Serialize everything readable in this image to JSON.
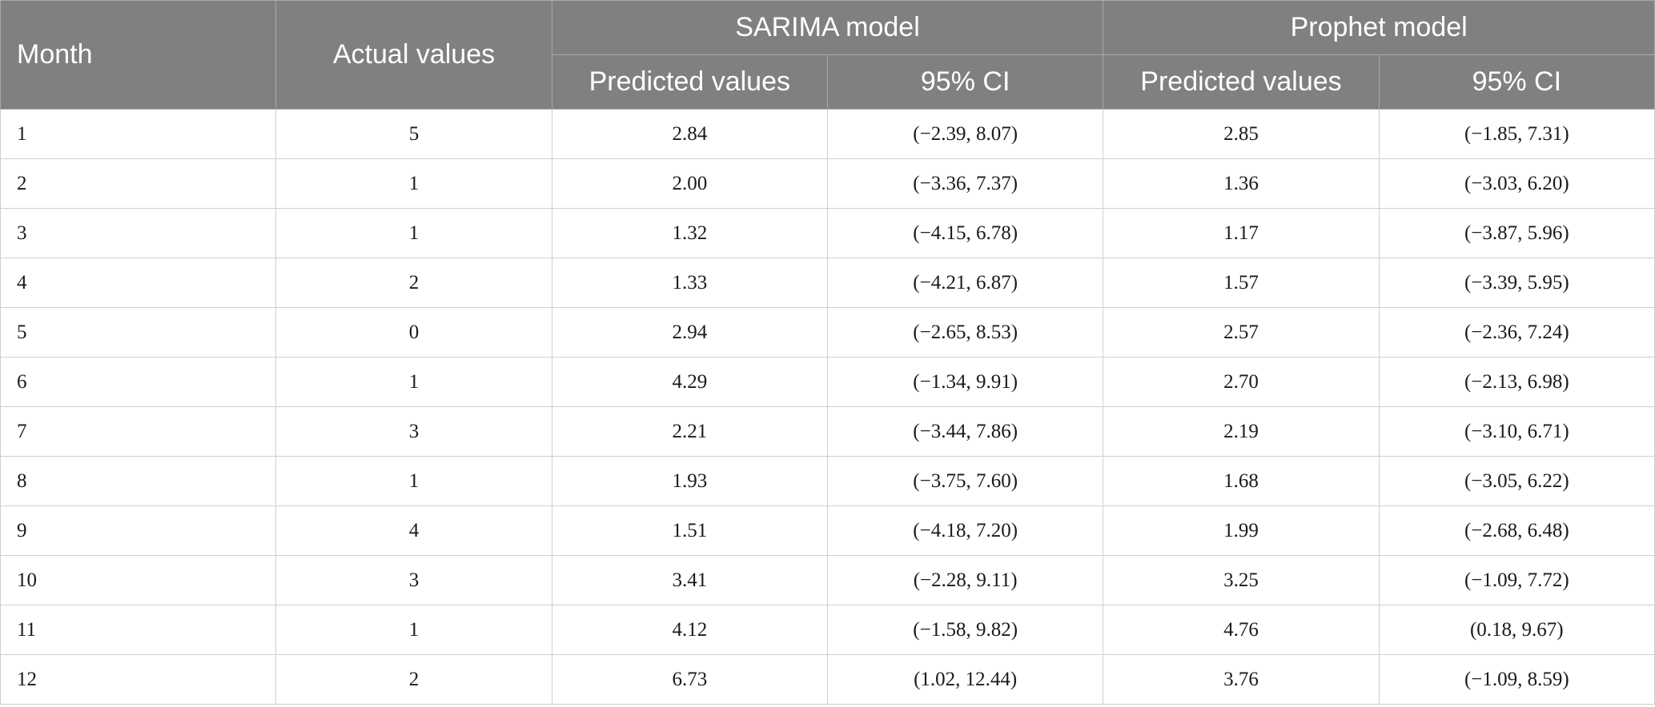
{
  "table": {
    "headers": {
      "month": "Month",
      "actual": "Actual values",
      "sarima_group": "SARIMA model",
      "prophet_group": "Prophet model",
      "sarima_pred": "Predicted values",
      "sarima_ci": "95% CI",
      "prophet_pred": "Predicted values",
      "prophet_ci": "95% CI"
    },
    "rows": [
      {
        "month": "1",
        "actual": "5",
        "sarima_pred": "2.84",
        "sarima_ci": "(−2.39, 8.07)",
        "prophet_pred": "2.85",
        "prophet_ci": "(−1.85, 7.31)"
      },
      {
        "month": "2",
        "actual": "1",
        "sarima_pred": "2.00",
        "sarima_ci": "(−3.36, 7.37)",
        "prophet_pred": "1.36",
        "prophet_ci": "(−3.03, 6.20)"
      },
      {
        "month": "3",
        "actual": "1",
        "sarima_pred": "1.32",
        "sarima_ci": "(−4.15, 6.78)",
        "prophet_pred": "1.17",
        "prophet_ci": "(−3.87, 5.96)"
      },
      {
        "month": "4",
        "actual": "2",
        "sarima_pred": "1.33",
        "sarima_ci": "(−4.21, 6.87)",
        "prophet_pred": "1.57",
        "prophet_ci": "(−3.39, 5.95)"
      },
      {
        "month": "5",
        "actual": "0",
        "sarima_pred": "2.94",
        "sarima_ci": "(−2.65, 8.53)",
        "prophet_pred": "2.57",
        "prophet_ci": "(−2.36, 7.24)"
      },
      {
        "month": "6",
        "actual": "1",
        "sarima_pred": "4.29",
        "sarima_ci": "(−1.34, 9.91)",
        "prophet_pred": "2.70",
        "prophet_ci": "(−2.13, 6.98)"
      },
      {
        "month": "7",
        "actual": "3",
        "sarima_pred": "2.21",
        "sarima_ci": "(−3.44, 7.86)",
        "prophet_pred": "2.19",
        "prophet_ci": "(−3.10, 6.71)"
      },
      {
        "month": "8",
        "actual": "1",
        "sarima_pred": "1.93",
        "sarima_ci": "(−3.75, 7.60)",
        "prophet_pred": "1.68",
        "prophet_ci": "(−3.05, 6.22)"
      },
      {
        "month": "9",
        "actual": "4",
        "sarima_pred": "1.51",
        "sarima_ci": "(−4.18, 7.20)",
        "prophet_pred": "1.99",
        "prophet_ci": "(−2.68, 6.48)"
      },
      {
        "month": "10",
        "actual": "3",
        "sarima_pred": "3.41",
        "sarima_ci": "(−2.28, 9.11)",
        "prophet_pred": "3.25",
        "prophet_ci": "(−1.09, 7.72)"
      },
      {
        "month": "11",
        "actual": "1",
        "sarima_pred": "4.12",
        "sarima_ci": "(−1.58, 9.82)",
        "prophet_pred": "4.76",
        "prophet_ci": "(0.18, 9.67)"
      },
      {
        "month": "12",
        "actual": "2",
        "sarima_pred": "6.73",
        "sarima_ci": "(1.02, 12.44)",
        "prophet_pred": "3.76",
        "prophet_ci": "(−1.09, 8.59)"
      }
    ]
  },
  "colors": {
    "header_bg": "#808080",
    "header_text": "#ffffff",
    "border": "#cfcfcf"
  }
}
